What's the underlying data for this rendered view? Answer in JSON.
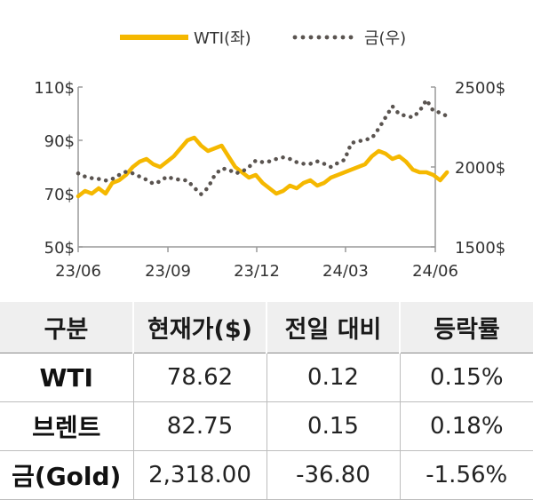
{
  "chart_data": {
    "type": "line",
    "x_ticks": [
      "23/06",
      "23/09",
      "23/12",
      "24/03",
      "24/06"
    ],
    "y_left_ticks": [
      "50$",
      "70$",
      "90$",
      "110$"
    ],
    "y_right_ticks": [
      "1500$",
      "2000$",
      "2500$"
    ],
    "y_left_range": [
      50,
      110
    ],
    "y_right_range": [
      1500,
      2500
    ],
    "grid": false,
    "legend_position": "top-center",
    "series": [
      {
        "name": "WTI(좌)",
        "axis": "left",
        "style": "solid",
        "color": "#F5B800",
        "x": [
          "23/06/01",
          "23/06/08",
          "23/06/15",
          "23/06/22",
          "23/06/29",
          "23/07/06",
          "23/07/13",
          "23/07/20",
          "23/07/27",
          "23/08/03",
          "23/08/10",
          "23/08/17",
          "23/08/24",
          "23/08/31",
          "23/09/07",
          "23/09/14",
          "23/09/21",
          "23/09/28",
          "23/10/05",
          "23/10/12",
          "23/10/19",
          "23/10/26",
          "23/11/02",
          "23/11/09",
          "23/11/16",
          "23/11/23",
          "23/11/30",
          "23/12/07",
          "23/12/14",
          "23/12/21",
          "23/12/28",
          "24/01/04",
          "24/01/11",
          "24/01/18",
          "24/01/25",
          "24/02/01",
          "24/02/08",
          "24/02/15",
          "24/02/22",
          "24/02/29",
          "24/03/07",
          "24/03/14",
          "24/03/21",
          "24/03/28",
          "24/04/04",
          "24/04/11",
          "24/04/18",
          "24/04/25",
          "24/05/02",
          "24/05/09",
          "24/05/16",
          "24/05/23",
          "24/05/30",
          "24/06/06",
          "24/06/13"
        ],
        "values": [
          69,
          71,
          70,
          72,
          70,
          74,
          75,
          77,
          80,
          82,
          83,
          81,
          80,
          82,
          84,
          87,
          90,
          91,
          88,
          86,
          87,
          88,
          84,
          80,
          78,
          76,
          77,
          74,
          72,
          70,
          71,
          73,
          72,
          74,
          75,
          73,
          74,
          76,
          77,
          78,
          79,
          80,
          81,
          84,
          86,
          85,
          83,
          84,
          82,
          79,
          78,
          78,
          77,
          75,
          78
        ]
      },
      {
        "name": "금(우)",
        "axis": "right",
        "style": "dotted",
        "color": "#5a5450",
        "x": [
          "23/06/01",
          "23/06/08",
          "23/06/15",
          "23/06/22",
          "23/06/29",
          "23/07/06",
          "23/07/13",
          "23/07/20",
          "23/07/27",
          "23/08/03",
          "23/08/10",
          "23/08/17",
          "23/08/24",
          "23/08/31",
          "23/09/07",
          "23/09/14",
          "23/09/21",
          "23/09/28",
          "23/10/05",
          "23/10/12",
          "23/10/19",
          "23/10/26",
          "23/11/02",
          "23/11/09",
          "23/11/16",
          "23/11/23",
          "23/11/30",
          "23/12/07",
          "23/12/14",
          "23/12/21",
          "23/12/28",
          "24/01/04",
          "24/01/11",
          "24/01/18",
          "24/01/25",
          "24/02/01",
          "24/02/08",
          "24/02/15",
          "24/02/22",
          "24/02/29",
          "24/03/07",
          "24/03/14",
          "24/03/21",
          "24/03/28",
          "24/04/04",
          "24/04/11",
          "24/04/18",
          "24/04/25",
          "24/05/02",
          "24/05/09",
          "24/05/16",
          "24/05/23",
          "24/05/30",
          "24/06/06",
          "24/06/13"
        ],
        "values": [
          1960,
          1940,
          1930,
          1925,
          1915,
          1925,
          1950,
          1970,
          1960,
          1940,
          1920,
          1895,
          1910,
          1940,
          1925,
          1920,
          1915,
          1870,
          1830,
          1870,
          1950,
          1990,
          1985,
          1960,
          1970,
          2000,
          2040,
          2030,
          2035,
          2050,
          2060,
          2050,
          2030,
          2020,
          2020,
          2035,
          2020,
          2000,
          2025,
          2045,
          2150,
          2160,
          2170,
          2180,
          2240,
          2310,
          2380,
          2330,
          2320,
          2310,
          2350,
          2420,
          2350,
          2340,
          2318
        ]
      }
    ]
  },
  "table": {
    "headers": [
      "구분",
      "현재가($)",
      "전일 대비",
      "등락률"
    ],
    "rows": [
      {
        "name": "WTI",
        "price": "78.62",
        "change": "0.12",
        "rate": "0.15%"
      },
      {
        "name": "브렌트",
        "price": "82.75",
        "change": "0.15",
        "rate": "0.18%"
      },
      {
        "name": "금(Gold)",
        "price": "2,318.00",
        "change": "-36.80",
        "rate": "-1.56%"
      }
    ]
  }
}
